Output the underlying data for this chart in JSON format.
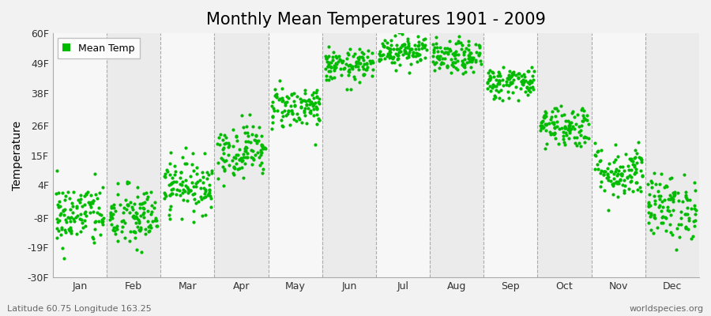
{
  "title": "Monthly Mean Temperatures 1901 - 2009",
  "ylabel": "Temperature",
  "bottom_left_text": "Latitude 60.75 Longitude 163.25",
  "bottom_right_text": "worldspecies.org",
  "legend_label": "Mean Temp",
  "marker_color": "#00BB00",
  "marker_size": 3,
  "ylim": [
    -30,
    60
  ],
  "yticks": [
    -30,
    -19,
    -8,
    4,
    15,
    26,
    38,
    49,
    60
  ],
  "ytick_labels": [
    "-30F",
    "-19F",
    "-8F",
    "4F",
    "15F",
    "26F",
    "38F",
    "49F",
    "60F"
  ],
  "months": [
    "Jan",
    "Feb",
    "Mar",
    "Apr",
    "May",
    "Jun",
    "Jul",
    "Aug",
    "Sep",
    "Oct",
    "Nov",
    "Dec"
  ],
  "month_means_f": [
    -7,
    -8,
    4,
    17,
    33,
    48,
    54,
    51,
    42,
    26,
    9,
    -4
  ],
  "month_stds_f": [
    6,
    6,
    5,
    5,
    4,
    3,
    3,
    3,
    3,
    4,
    5,
    6
  ],
  "n_years": 109,
  "background_color": "#f2f2f2",
  "plot_bg_color": "#f2f2f2",
  "band_color_odd": "#ebebeb",
  "band_color_even": "#f7f7f7",
  "dashed_line_color": "#aaaaaa",
  "title_fontsize": 15,
  "axis_label_fontsize": 10,
  "tick_fontsize": 9,
  "footer_fontsize": 8
}
